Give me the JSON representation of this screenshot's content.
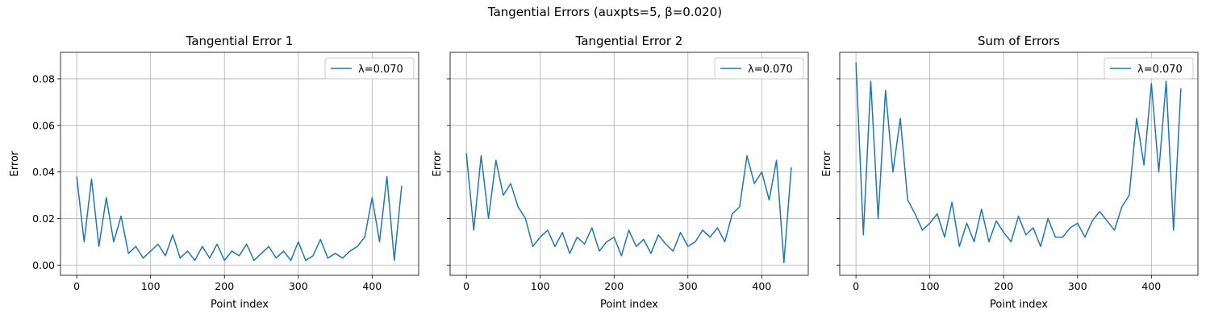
{
  "title": "Tangential Errors (auxpts=5, β=0.020)",
  "chart_data": [
    {
      "type": "line",
      "title": "Tangential Error 1",
      "xlabel": "Point index",
      "ylabel": "Error",
      "x": [
        0,
        10,
        20,
        30,
        40,
        50,
        60,
        70,
        80,
        90,
        100,
        110,
        120,
        130,
        140,
        150,
        160,
        170,
        180,
        190,
        200,
        210,
        220,
        230,
        240,
        250,
        260,
        270,
        280,
        290,
        300,
        310,
        320,
        330,
        340,
        350,
        360,
        370,
        380,
        390,
        400,
        410,
        420,
        430,
        440
      ],
      "series": [
        {
          "name": "λ=0.070",
          "color": "#1f77b4",
          "values": [
            0.038,
            0.01,
            0.037,
            0.008,
            0.029,
            0.01,
            0.021,
            0.005,
            0.008,
            0.003,
            0.006,
            0.009,
            0.004,
            0.013,
            0.003,
            0.006,
            0.002,
            0.008,
            0.003,
            0.009,
            0.002,
            0.006,
            0.004,
            0.009,
            0.002,
            0.005,
            0.008,
            0.003,
            0.006,
            0.002,
            0.01,
            0.002,
            0.004,
            0.011,
            0.003,
            0.005,
            0.003,
            0.006,
            0.008,
            0.012,
            0.029,
            0.01,
            0.038,
            0.002,
            0.034
          ]
        }
      ],
      "xlim": [
        -22,
        463
      ],
      "ylim": [
        -0.0044,
        0.0914
      ],
      "xticks": [
        0,
        100,
        200,
        300,
        400
      ],
      "yticks": [
        {
          "value": 0,
          "label": "0.00"
        },
        {
          "value": 0.02,
          "label": "0.02"
        },
        {
          "value": 0.04,
          "label": "0.04"
        },
        {
          "value": 0.06,
          "label": "0.06"
        },
        {
          "value": 0.08,
          "label": "0.08"
        }
      ],
      "grid": true,
      "legend": "upper right"
    },
    {
      "type": "line",
      "title": "Tangential Error 2",
      "xlabel": "Point index",
      "ylabel": "Error",
      "x": [
        0,
        10,
        20,
        30,
        40,
        50,
        60,
        70,
        80,
        90,
        100,
        110,
        120,
        130,
        140,
        150,
        160,
        170,
        180,
        190,
        200,
        210,
        220,
        230,
        240,
        250,
        260,
        270,
        280,
        290,
        300,
        310,
        320,
        330,
        340,
        350,
        360,
        370,
        380,
        390,
        400,
        410,
        420,
        430,
        440
      ],
      "series": [
        {
          "name": "λ=0.070",
          "color": "#1f77b4",
          "values": [
            0.048,
            0.015,
            0.047,
            0.02,
            0.045,
            0.03,
            0.035,
            0.025,
            0.02,
            0.008,
            0.012,
            0.015,
            0.008,
            0.014,
            0.005,
            0.012,
            0.009,
            0.016,
            0.006,
            0.01,
            0.012,
            0.004,
            0.015,
            0.008,
            0.011,
            0.005,
            0.013,
            0.009,
            0.006,
            0.014,
            0.008,
            0.01,
            0.015,
            0.012,
            0.016,
            0.01,
            0.022,
            0.025,
            0.047,
            0.035,
            0.04,
            0.028,
            0.045,
            0.001,
            0.042
          ]
        }
      ],
      "xlim": [
        -22,
        463
      ],
      "xticks": [
        0,
        100,
        200,
        300,
        400
      ],
      "sharey": true,
      "grid": true,
      "legend": "upper right"
    },
    {
      "type": "line",
      "title": "Sum of Errors",
      "xlabel": "Point index",
      "ylabel": "Error",
      "x": [
        0,
        10,
        20,
        30,
        40,
        50,
        60,
        70,
        80,
        90,
        100,
        110,
        120,
        130,
        140,
        150,
        160,
        170,
        180,
        190,
        200,
        210,
        220,
        230,
        240,
        250,
        260,
        270,
        280,
        290,
        300,
        310,
        320,
        330,
        340,
        350,
        360,
        370,
        380,
        390,
        400,
        410,
        420,
        430,
        440
      ],
      "series": [
        {
          "name": "λ=0.070",
          "color": "#1f77b4",
          "values": [
            0.087,
            0.013,
            0.079,
            0.02,
            0.075,
            0.04,
            0.063,
            0.028,
            0.022,
            0.015,
            0.018,
            0.022,
            0.012,
            0.027,
            0.008,
            0.018,
            0.01,
            0.024,
            0.01,
            0.019,
            0.014,
            0.01,
            0.021,
            0.013,
            0.016,
            0.008,
            0.02,
            0.012,
            0.012,
            0.016,
            0.018,
            0.012,
            0.019,
            0.023,
            0.019,
            0.015,
            0.025,
            0.03,
            0.063,
            0.043,
            0.078,
            0.04,
            0.079,
            0.015,
            0.076
          ]
        }
      ],
      "xlim": [
        -22,
        463
      ],
      "xticks": [
        0,
        100,
        200,
        300,
        400
      ],
      "sharey": true,
      "grid": true,
      "legend": "upper right"
    }
  ]
}
